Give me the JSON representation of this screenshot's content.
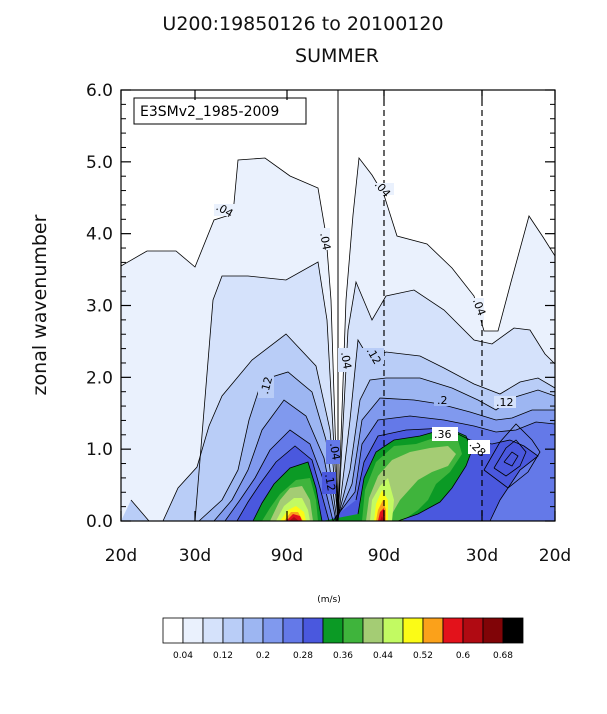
{
  "chart_data": {
    "type": "contour",
    "title_line1": "U200:19850126 to 20100120",
    "title_line2": "SUMMER",
    "ylabel": "zonal wavenumber",
    "ylim": [
      0,
      6
    ],
    "y_ticks": [
      "0.0",
      "1.0",
      "2.0",
      "3.0",
      "4.0",
      "5.0",
      "6.0"
    ],
    "x_tick_labels": [
      "20d",
      "30d",
      "90d",
      "90d",
      "30d",
      "20d"
    ],
    "legend_label": "E3SMv2_1985-2009",
    "colorbar_units": "(m/s)",
    "colorbar_ticks": [
      "0.04",
      "0.12",
      "0.2",
      "0.28",
      "0.36",
      "0.44",
      "0.52",
      "0.6",
      "0.68"
    ],
    "colorbar_colors": [
      "#ffffff",
      "#eaf1fd",
      "#d5e2fb",
      "#b9cdf7",
      "#9db6f2",
      "#8099ee",
      "#6479e8",
      "#4a58de",
      "#0b9a25",
      "#3fb43c",
      "#a4cc74",
      "#c2fa62",
      "#fbfb16",
      "#fba11a",
      "#e3121b",
      "#b00a12",
      "#800407",
      "#000000"
    ],
    "inline_labels": [
      ".04",
      ".04",
      ".04",
      ".04",
      ".04",
      ".04",
      ".12",
      ".12",
      ".12",
      ".12",
      ".2",
      ".36",
      ".28"
    ]
  }
}
